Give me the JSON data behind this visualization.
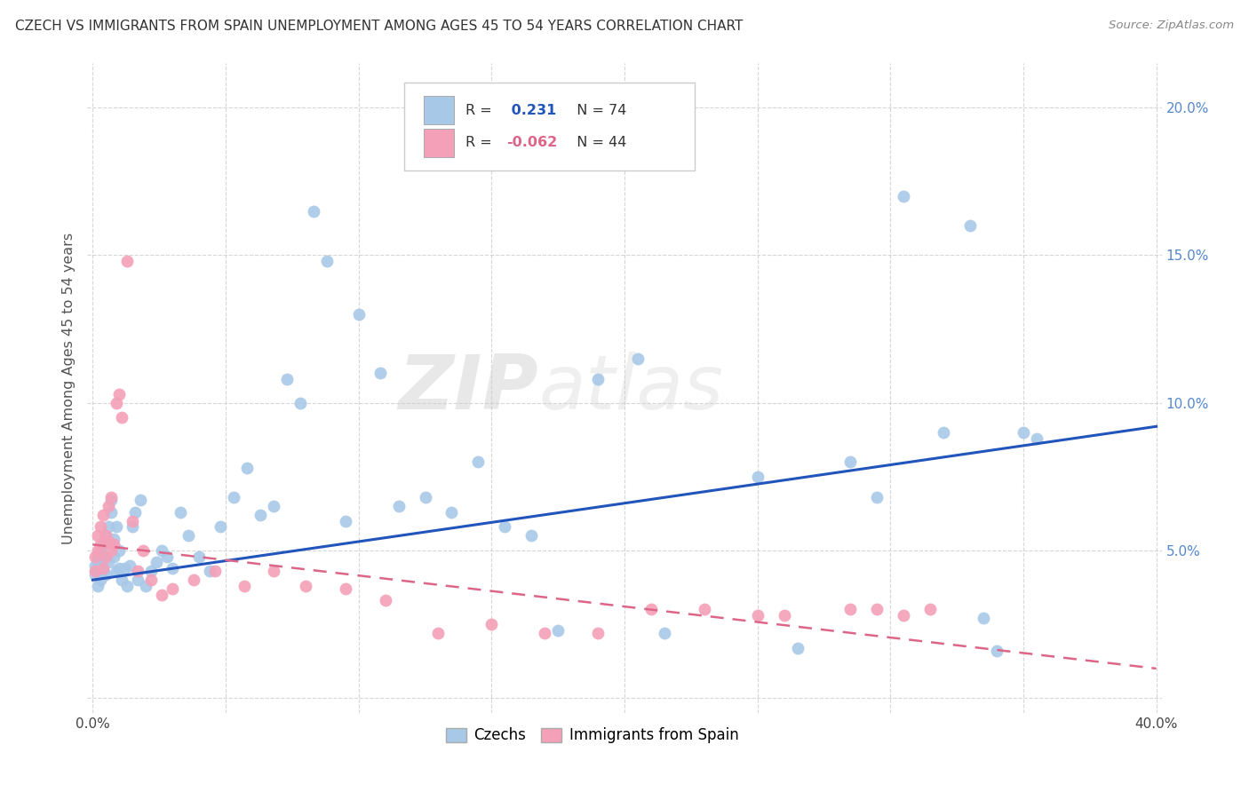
{
  "title": "CZECH VS IMMIGRANTS FROM SPAIN UNEMPLOYMENT AMONG AGES 45 TO 54 YEARS CORRELATION CHART",
  "source": "Source: ZipAtlas.com",
  "ylabel": "Unemployment Among Ages 45 to 54 years",
  "xlim": [
    -0.002,
    0.402
  ],
  "ylim": [
    -0.005,
    0.215
  ],
  "xticks": [
    0.0,
    0.05,
    0.1,
    0.15,
    0.2,
    0.25,
    0.3,
    0.35,
    0.4
  ],
  "yticks": [
    0.0,
    0.05,
    0.1,
    0.15,
    0.2
  ],
  "czech_R": 0.231,
  "czech_N": 74,
  "spain_R": -0.062,
  "spain_N": 44,
  "czech_color": "#a8c8e8",
  "czech_line_color": "#2255bb",
  "spain_color": "#f4a0b8",
  "spain_line_color": "#dd6688",
  "background_color": "#ffffff",
  "czech_scatter_x": [
    0.001,
    0.001,
    0.002,
    0.002,
    0.002,
    0.003,
    0.003,
    0.003,
    0.004,
    0.004,
    0.004,
    0.005,
    0.005,
    0.006,
    0.006,
    0.007,
    0.007,
    0.008,
    0.008,
    0.009,
    0.009,
    0.01,
    0.01,
    0.011,
    0.012,
    0.013,
    0.014,
    0.015,
    0.016,
    0.017,
    0.018,
    0.02,
    0.022,
    0.024,
    0.026,
    0.028,
    0.03,
    0.033,
    0.036,
    0.04,
    0.044,
    0.048,
    0.053,
    0.058,
    0.063,
    0.068,
    0.073,
    0.078,
    0.083,
    0.088,
    0.095,
    0.1,
    0.108,
    0.115,
    0.125,
    0.135,
    0.145,
    0.155,
    0.165,
    0.175,
    0.19,
    0.205,
    0.215,
    0.25,
    0.265,
    0.285,
    0.295,
    0.305,
    0.32,
    0.33,
    0.335,
    0.34,
    0.35,
    0.355
  ],
  "czech_scatter_y": [
    0.042,
    0.045,
    0.038,
    0.046,
    0.048,
    0.04,
    0.044,
    0.05,
    0.043,
    0.047,
    0.052,
    0.042,
    0.055,
    0.058,
    0.046,
    0.063,
    0.067,
    0.048,
    0.054,
    0.043,
    0.058,
    0.044,
    0.05,
    0.04,
    0.044,
    0.038,
    0.045,
    0.058,
    0.063,
    0.04,
    0.067,
    0.038,
    0.043,
    0.046,
    0.05,
    0.048,
    0.044,
    0.063,
    0.055,
    0.048,
    0.043,
    0.058,
    0.068,
    0.078,
    0.062,
    0.065,
    0.108,
    0.1,
    0.165,
    0.148,
    0.06,
    0.13,
    0.11,
    0.065,
    0.068,
    0.063,
    0.08,
    0.058,
    0.055,
    0.023,
    0.108,
    0.115,
    0.022,
    0.075,
    0.017,
    0.08,
    0.068,
    0.17,
    0.09,
    0.16,
    0.027,
    0.016,
    0.09,
    0.088
  ],
  "spain_scatter_x": [
    0.001,
    0.001,
    0.002,
    0.002,
    0.003,
    0.003,
    0.004,
    0.004,
    0.005,
    0.005,
    0.006,
    0.006,
    0.007,
    0.007,
    0.008,
    0.009,
    0.01,
    0.011,
    0.013,
    0.015,
    0.017,
    0.019,
    0.022,
    0.026,
    0.03,
    0.038,
    0.046,
    0.057,
    0.068,
    0.08,
    0.095,
    0.11,
    0.13,
    0.15,
    0.17,
    0.19,
    0.21,
    0.23,
    0.25,
    0.26,
    0.285,
    0.295,
    0.305,
    0.315
  ],
  "spain_scatter_y": [
    0.043,
    0.048,
    0.05,
    0.055,
    0.052,
    0.058,
    0.044,
    0.062,
    0.048,
    0.055,
    0.053,
    0.065,
    0.05,
    0.068,
    0.052,
    0.1,
    0.103,
    0.095,
    0.148,
    0.06,
    0.043,
    0.05,
    0.04,
    0.035,
    0.037,
    0.04,
    0.043,
    0.038,
    0.043,
    0.038,
    0.037,
    0.033,
    0.022,
    0.025,
    0.022,
    0.022,
    0.03,
    0.03,
    0.028,
    0.028,
    0.03,
    0.03,
    0.028,
    0.03
  ]
}
